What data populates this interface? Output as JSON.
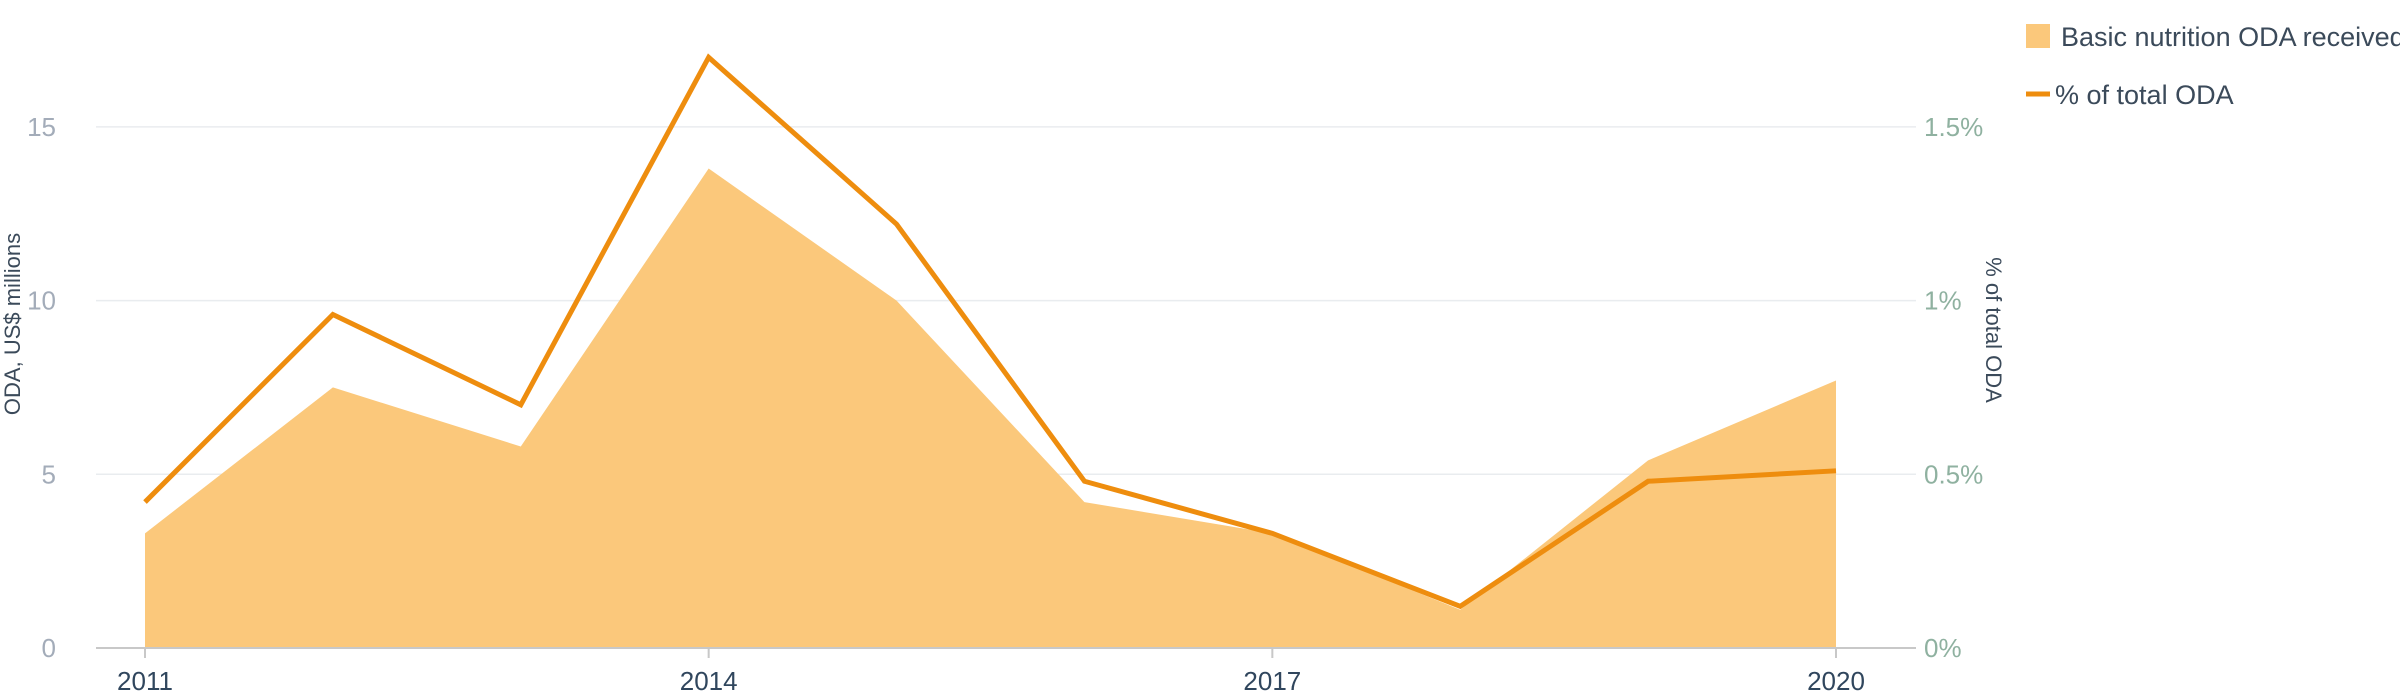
{
  "colors": {
    "area": "#fbc87b",
    "line": "#ee8d0e"
  },
  "chart_data": {
    "type": "area",
    "x": [
      2011,
      2012,
      2013,
      2014,
      2015,
      2016,
      2017,
      2018,
      2019,
      2020
    ],
    "x_ticks": [
      2011,
      2014,
      2017,
      2020
    ],
    "y_left_label": "ODA, US$ millions",
    "y_right_label": "% of total ODA",
    "y_left_ticks": [
      0,
      5,
      10,
      15
    ],
    "y_right_ticks": [
      "0%",
      "0.5%",
      "1%",
      "1.5%"
    ],
    "y_left_range": [
      0,
      17.5
    ],
    "y_right_range": [
      0,
      1.75
    ],
    "grid": true,
    "legend_position": "top-right",
    "series": [
      {
        "name": "Basic nutrition ODA received",
        "kind": "area",
        "axis": "left",
        "values": [
          3.3,
          7.5,
          5.8,
          13.8,
          10.0,
          4.2,
          3.3,
          1.1,
          5.4,
          7.7
        ]
      },
      {
        "name": "% of total ODA",
        "kind": "line",
        "axis": "right",
        "values": [
          0.42,
          0.96,
          0.7,
          1.7,
          1.22,
          0.48,
          0.33,
          0.12,
          0.48,
          0.51
        ]
      }
    ]
  }
}
